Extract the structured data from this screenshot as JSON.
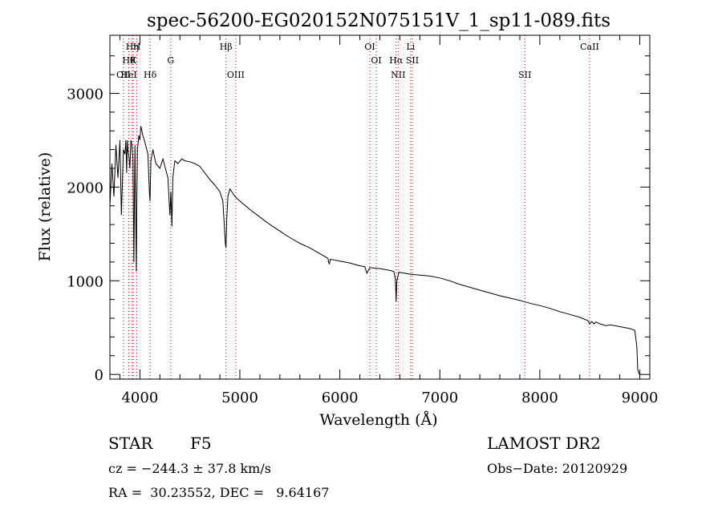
{
  "chart_data": {
    "type": "line",
    "title": "spec-56200-EG020152N075151V_1_sp11-089.fits",
    "xlabel": "Wavelength (Å)",
    "ylabel": "Flux (relative)",
    "xlim": [
      3700,
      9100
    ],
    "ylim": [
      -50,
      3620
    ],
    "x_ticks": [
      4000,
      5000,
      6000,
      7000,
      8000,
      9000
    ],
    "y_ticks": [
      0,
      1000,
      2000,
      3000
    ],
    "grid": false,
    "series": [
      {
        "x": [
          3700,
          3720,
          3740,
          3760,
          3780,
          3800,
          3815,
          3835,
          3850,
          3860,
          3868,
          3875,
          3880,
          3888,
          3900,
          3910,
          3920,
          3930,
          3940,
          3950,
          3965,
          3968,
          3975,
          3990,
          4000,
          4010,
          4030,
          4050,
          4080,
          4095,
          4101,
          4110,
          4130,
          4160,
          4200,
          4230,
          4260,
          4280,
          4300,
          4310,
          4320,
          4330,
          4340,
          4350,
          4380,
          4420,
          4450,
          4500,
          4550,
          4600,
          4650,
          4700,
          4750,
          4800,
          4830,
          4855,
          4861,
          4868,
          4880,
          4900,
          4950,
          5000,
          5100,
          5200,
          5300,
          5400,
          5500,
          5600,
          5700,
          5800,
          5880,
          5890,
          5896,
          5905,
          6000,
          6100,
          6200,
          6250,
          6270,
          6300,
          6400,
          6500,
          6540,
          6555,
          6563,
          6570,
          6590,
          6650,
          6700,
          6800,
          6900,
          7000,
          7100,
          7200,
          7300,
          7400,
          7500,
          7600,
          7700,
          7800,
          7900,
          8000,
          8100,
          8200,
          8300,
          8400,
          8480,
          8500,
          8520,
          8542,
          8560,
          8600,
          8662,
          8700,
          8800,
          8900,
          8950,
          8970,
          8980,
          8990,
          9000
        ],
        "values": [
          1800,
          2250,
          1900,
          2450,
          2100,
          2500,
          1700,
          2400,
          2350,
          2500,
          2150,
          2500,
          2400,
          2350,
          2200,
          2500,
          2450,
          2300,
          1200,
          2450,
          1100,
          1700,
          2400,
          2550,
          2500,
          2650,
          2550,
          2480,
          2350,
          1950,
          1850,
          2280,
          2400,
          2250,
          2200,
          2300,
          2180,
          2100,
          1700,
          1950,
          1580,
          2100,
          2200,
          2280,
          2250,
          2300,
          2280,
          2270,
          2250,
          2220,
          2150,
          2080,
          2020,
          1950,
          1850,
          1400,
          1350,
          1650,
          1900,
          1980,
          1900,
          1850,
          1760,
          1680,
          1600,
          1530,
          1460,
          1400,
          1350,
          1290,
          1240,
          1190,
          1180,
          1230,
          1210,
          1190,
          1160,
          1150,
          1080,
          1140,
          1130,
          1110,
          1100,
          1020,
          780,
          1000,
          1090,
          1080,
          1070,
          1060,
          1050,
          1030,
          1000,
          960,
          930,
          900,
          870,
          840,
          815,
          790,
          760,
          735,
          705,
          670,
          640,
          610,
          575,
          540,
          565,
          540,
          560,
          540,
          520,
          530,
          510,
          490,
          470,
          300,
          50,
          10,
          0
        ]
      }
    ],
    "line_marks": [
      {
        "x": 3835,
        "label": "OII",
        "row": 3
      },
      {
        "x": 3889,
        "label": "Hθ",
        "row": 2
      },
      {
        "x": 3889,
        "label": "HeI",
        "row": 3
      },
      {
        "x": 3923,
        "label": "Hη",
        "row": 1
      },
      {
        "x": 3934,
        "label": "K",
        "row": 2
      },
      {
        "x": 3969,
        "label": "H",
        "row": 1
      },
      {
        "x": 4102,
        "label": "Hδ",
        "row": 3
      },
      {
        "x": 4308,
        "label": "G",
        "row": 2
      },
      {
        "x": 4861,
        "label": "Hβ",
        "row": 1
      },
      {
        "x": 4959,
        "label": "OIII",
        "row": 3
      },
      {
        "x": 6300,
        "label": "OI",
        "row": 1
      },
      {
        "x": 6364,
        "label": "OI",
        "row": 2
      },
      {
        "x": 6563,
        "label": "Hα",
        "row": 2
      },
      {
        "x": 6583,
        "label": "NII",
        "row": 3
      },
      {
        "x": 6708,
        "label": "Li",
        "row": 1
      },
      {
        "x": 6725,
        "label": "SII",
        "row": 2
      },
      {
        "x": 7850,
        "label": "SII",
        "row": 3
      },
      {
        "x": 8498,
        "label": "CaII",
        "row": 1
      }
    ]
  },
  "info": {
    "class": "STAR",
    "subclass": "F5",
    "survey": "LAMOST DR2",
    "cz": "cz = −244.3 ± 37.8 km/s",
    "obs_date": "Obs−Date: 20120929",
    "coords": "RA =  30.23552, DEC =   9.64167"
  },
  "colors": {
    "axis": "#000000",
    "line_mark": "#cc0000",
    "spectrum": "#000000"
  }
}
